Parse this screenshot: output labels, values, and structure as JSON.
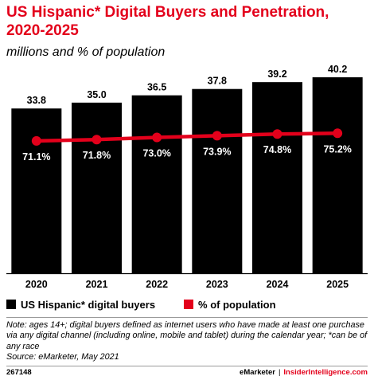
{
  "header": {
    "title": "US Hispanic* Digital Buyers and Penetration, 2020-2025",
    "subtitle": "millions and % of population"
  },
  "chart_data": {
    "type": "bar",
    "categories": [
      "2020",
      "2021",
      "2022",
      "2023",
      "2024",
      "2025"
    ],
    "series": [
      {
        "name": "US Hispanic* digital buyers",
        "type": "bar",
        "values": [
          33.8,
          35.0,
          36.5,
          37.8,
          39.2,
          40.2
        ],
        "labels": [
          "33.8",
          "35.0",
          "36.5",
          "37.8",
          "39.2",
          "40.2"
        ],
        "color": "#000000"
      },
      {
        "name": "% of population",
        "type": "line",
        "values": [
          71.1,
          71.8,
          73.0,
          73.9,
          74.8,
          75.2
        ],
        "labels": [
          "71.1%",
          "71.8%",
          "73.0%",
          "73.9%",
          "74.8%",
          "75.2%"
        ],
        "color": "#e3001b"
      }
    ],
    "ylim": [
      0,
      42
    ],
    "y2lim": [
      0,
      110
    ],
    "legend_position": "bottom-left",
    "grid": false
  },
  "legend": {
    "bars_label": "US Hispanic* digital buyers",
    "line_label": "% of population"
  },
  "note": {
    "line1": "Note: ages 14+; digital buyers defined as internet users who have made at least one purchase via any digital channel (including online, mobile and tablet) during the calendar year; *can be of any race",
    "line2": "Source: eMarketer, May 2021"
  },
  "footer": {
    "id": "267148",
    "brand1": "eMarketer",
    "separator": "|",
    "brand2": "InsiderIntelligence.com"
  }
}
